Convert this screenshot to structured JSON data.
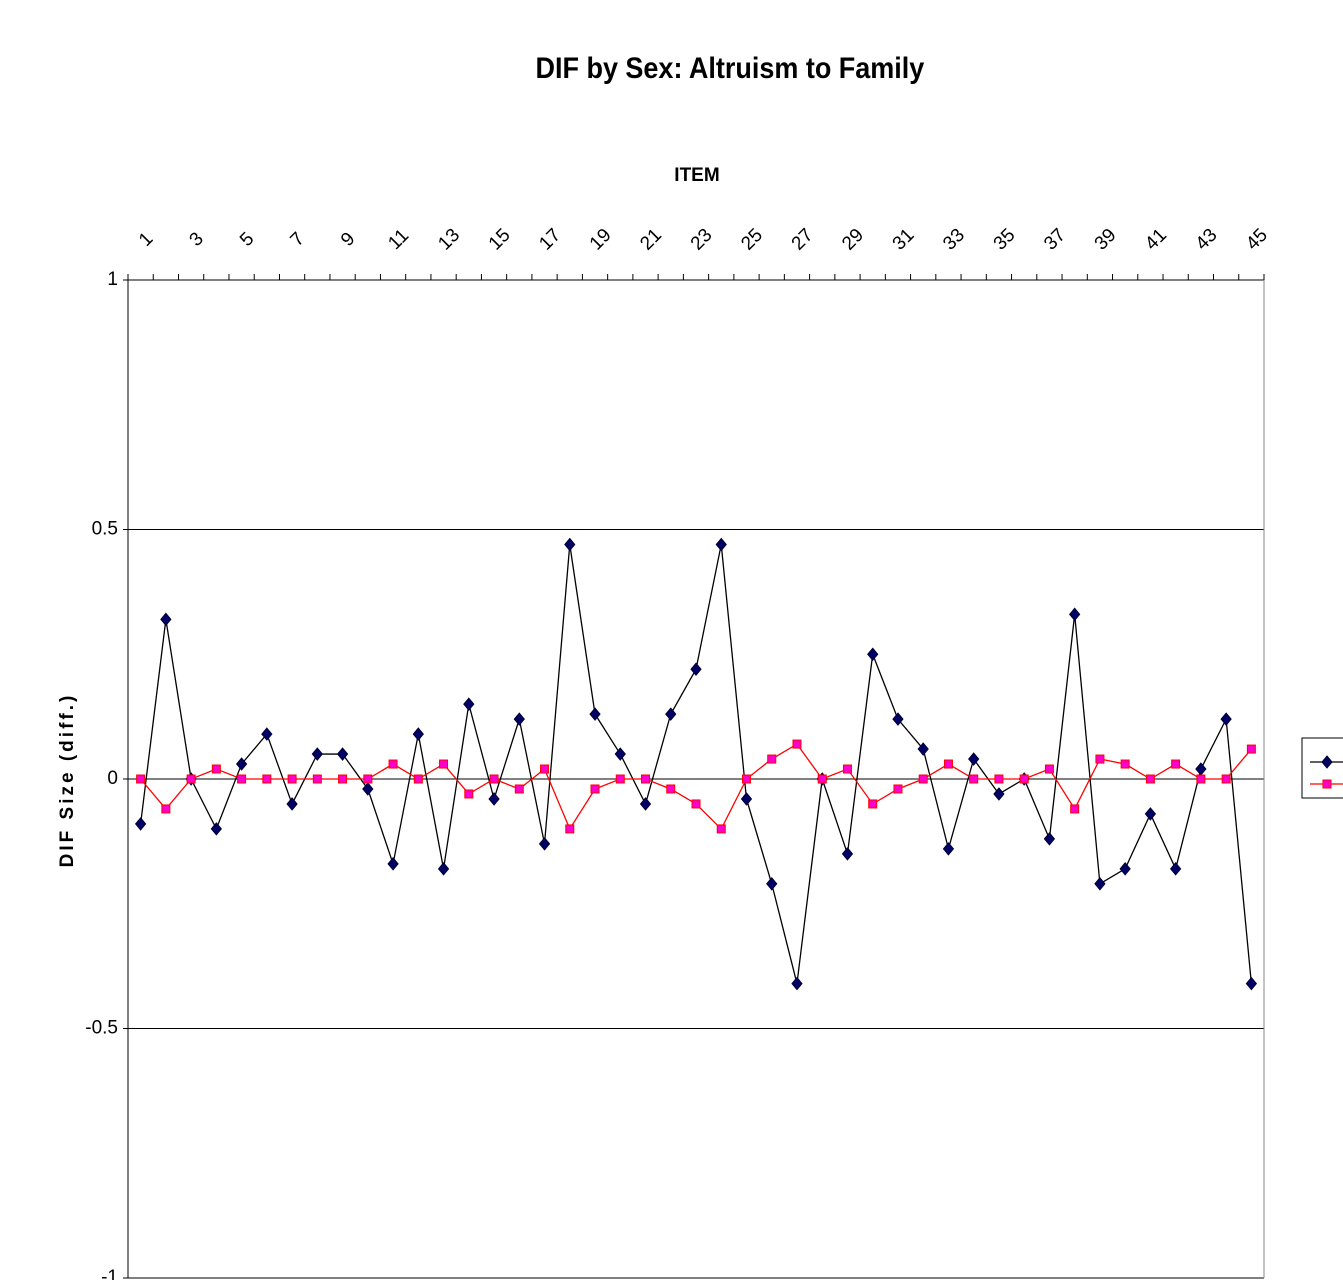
{
  "chart_data": {
    "type": "line",
    "title": "DIF by Sex: Altruism to Family",
    "xlabel": "ITEM",
    "ylabel": "DIF Size (diff.)",
    "categories": [
      1,
      null,
      3,
      null,
      5,
      null,
      7,
      null,
      9,
      null,
      11,
      null,
      13,
      null,
      15,
      null,
      17,
      null,
      19,
      null,
      21,
      null,
      23,
      null,
      25,
      null,
      27,
      null,
      29,
      null,
      31,
      null,
      33,
      null,
      35,
      null,
      37,
      null,
      39,
      null,
      41,
      null,
      43,
      null,
      45
    ],
    "series": [
      {
        "color": "#000000",
        "marker_color": "#000066",
        "marker": "diamond",
        "values": [
          -0.09,
          0.32,
          0,
          -0.1,
          0.03,
          0.09,
          -0.05,
          0.05,
          0.05,
          -0.02,
          -0.17,
          0.09,
          -0.18,
          0.15,
          -0.04,
          0.12,
          -0.13,
          0.47,
          0.13,
          0.05,
          -0.05,
          0.13,
          0.22,
          0.47,
          -0.04,
          -0.21,
          -0.41,
          0,
          -0.15,
          0.25,
          0.12,
          0.06,
          -0.14,
          0.04,
          -0.03,
          0,
          -0.12,
          0.33,
          -0.21,
          -0.18,
          -0.07,
          -0.18,
          0.02,
          0.12,
          -0.41
        ]
      },
      {
        "color": "#ff0000",
        "marker_color": "#ff00cc",
        "marker": "square",
        "values": [
          0,
          -0.06,
          0,
          0.02,
          0,
          0,
          0,
          0,
          0,
          0,
          0.03,
          0,
          0.03,
          -0.03,
          0,
          -0.02,
          0.02,
          -0.1,
          -0.02,
          0,
          0,
          -0.02,
          -0.05,
          -0.1,
          0,
          0.04,
          0.07,
          0,
          0.02,
          -0.05,
          -0.02,
          0,
          0.03,
          0,
          0,
          0,
          0.02,
          -0.06,
          0.04,
          0.03,
          0,
          0.03,
          0,
          0,
          0.06
        ]
      }
    ],
    "ylim": [
      -1,
      1
    ],
    "yticks": [
      -1,
      -0.5,
      0,
      0.5,
      1
    ],
    "grid": true,
    "legend": "right",
    "xaxis_position": "top"
  }
}
